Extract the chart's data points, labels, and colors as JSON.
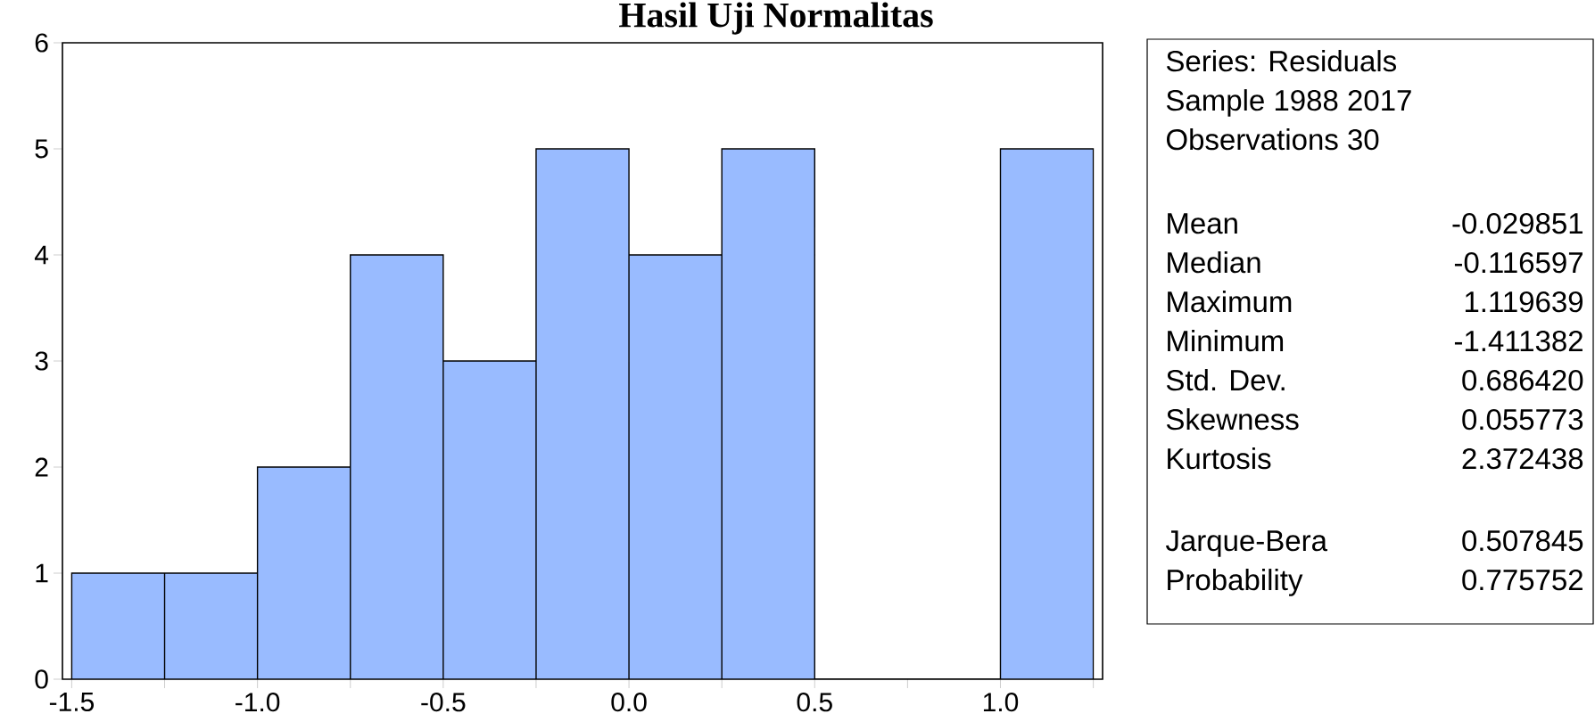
{
  "chart_data": {
    "type": "histogram",
    "title": "Hasil Uji Normalitas",
    "bins": [
      -1.5,
      -1.25,
      -1.0,
      -0.75,
      -0.5,
      -0.25,
      0.0,
      0.25,
      0.5,
      0.75,
      1.0,
      1.25
    ],
    "values": [
      1,
      1,
      2,
      4,
      3,
      5,
      4,
      5,
      0,
      0,
      5
    ],
    "color": "#99bbff",
    "xlim": [
      -1.525,
      1.275
    ],
    "xticks": [
      -1.5,
      {
        "value": -1.25,
        "label": null
      },
      "-1.0",
      {
        "value": -0.75,
        "label": null
      },
      -0.5,
      {
        "value": -0.25,
        "label": null
      },
      "0.0",
      {
        "value": 0.25,
        "label": null
      },
      0.5,
      {
        "value": 0.75,
        "label": null
      },
      "1.0",
      {
        "value": 1.25,
        "label": null
      }
    ],
    "ylim": [
      0,
      6
    ],
    "yticks": [
      0,
      1,
      2,
      3,
      4,
      5,
      6
    ],
    "annotations": [
      "Series: Residuals",
      "Sample 1988 2017",
      "Observations 30",
      "Mean",
      "-0.029851",
      "Median",
      "-0.116597",
      "Maximum",
      "1.119639",
      "Minimum",
      "-1.411382",
      "Std. Dev.",
      "0.686420",
      "Skewness",
      "0.055773",
      "Kurtosis",
      "2.372438",
      "Jarque-Bera",
      "0.507845",
      "Probability",
      "0.775752"
    ]
  }
}
